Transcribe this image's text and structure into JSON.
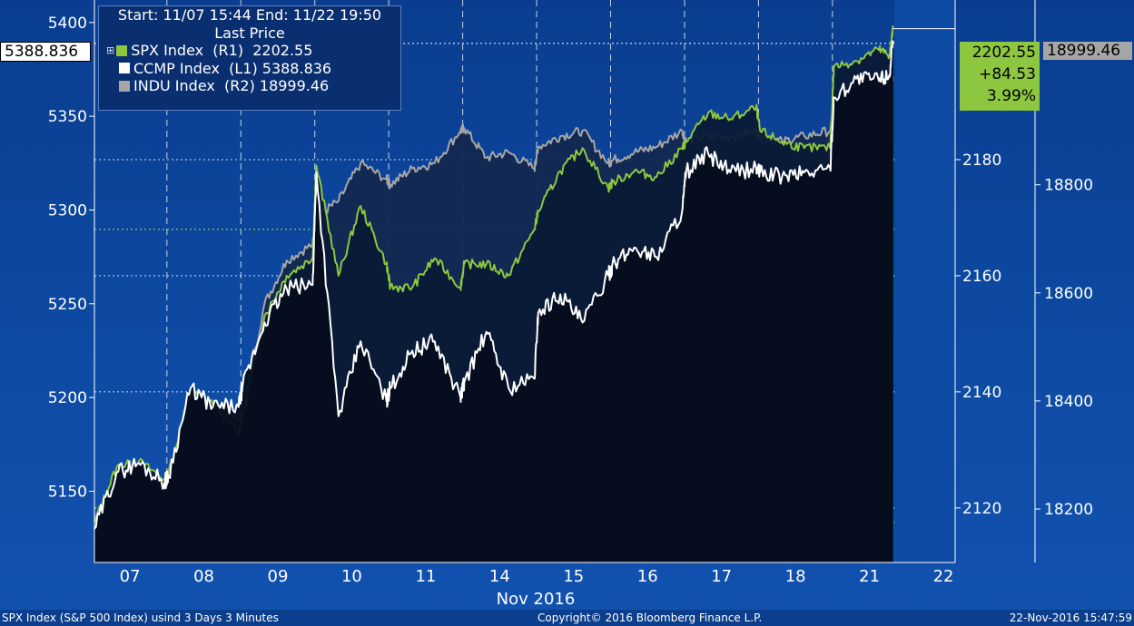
{
  "legend": {
    "range": "Start: 11/07 15:44 End: 11/22 19:50",
    "heading": "Last Price",
    "items": [
      {
        "label": "SPX Index  (R1)  2202.55",
        "color": "#8dc63f"
      },
      {
        "label": "CCMP Index  (L1) 5388.836",
        "color": "#ffffff"
      },
      {
        "label": "INDU Index  (R2) 18999.46",
        "color": "#a6a6a6"
      }
    ]
  },
  "tags": {
    "left_last": "5388.836",
    "spx_last": "2202.55",
    "spx_change": "+84.53",
    "spx_pct": "3.99%",
    "indu_last": "18999.46"
  },
  "footer": {
    "left": "SPX Index (S&P 500 Index) usind 3 Days 3 Minutes",
    "center": "Copyright© 2016 Bloomberg Finance L.P.",
    "right": "22-Nov-2016 15:47:59"
  },
  "colors": {
    "spx": "#8dc63f",
    "ccmp": "#ffffff",
    "indu": "#a6a6a6",
    "plot_fill": "#050d1c"
  },
  "chart_data": {
    "type": "line",
    "xlabel": "Nov 2016",
    "categories": [
      "07",
      "08",
      "09",
      "10",
      "11",
      "14",
      "15",
      "16",
      "17",
      "18",
      "21",
      "22"
    ],
    "left_axis": {
      "series": "CCMP Index",
      "ticks": [
        "5150",
        "5200",
        "5250",
        "5300",
        "5350",
        "5400"
      ],
      "range": [
        5112,
        5412
      ]
    },
    "right1_axis": {
      "series": "SPX Index",
      "ticks": [
        "2120",
        "2140",
        "2160",
        "2180"
      ],
      "range": [
        2110.6,
        2207.5
      ]
    },
    "right2_axis": {
      "series": "INDU Index",
      "ticks": [
        "18200",
        "18400",
        "18600",
        "18800"
      ],
      "range": [
        18101,
        19142
      ]
    },
    "reference_lines": {
      "left": 5388.836,
      "spx": [
        2182,
        2168,
        2162,
        2120,
        2117.5
      ],
      "spx_dotted_color_line": [
        2168,
        2117.5
      ]
    },
    "series": [
      {
        "name": "SPX Index",
        "axis": "R1",
        "x": [
          0.0,
          0.3,
          0.6,
          0.95,
          1.0,
          1.3,
          1.6,
          1.95,
          2.0,
          2.3,
          2.6,
          2.95,
          3.0,
          3.3,
          3.6,
          3.95,
          4.0,
          4.3,
          4.6,
          4.95,
          5.0,
          5.3,
          5.6,
          5.95,
          6.0,
          6.3,
          6.6,
          6.95,
          7.0,
          7.3,
          7.6,
          7.95,
          8.0,
          8.3,
          8.6,
          8.95,
          9.0,
          9.3,
          9.6,
          9.95,
          10.0,
          10.3,
          10.6,
          10.75,
          10.8
        ],
        "values": [
          2117.5,
          2127,
          2128,
          2125,
          2126,
          2140,
          2138,
          2133,
          2135,
          2153,
          2160,
          2163,
          2179,
          2160,
          2172,
          2162,
          2158,
          2158,
          2163,
          2158,
          2162,
          2162,
          2160,
          2168,
          2171,
          2178,
          2182,
          2175,
          2176,
          2178,
          2177,
          2182,
          2183,
          2188,
          2187,
          2189,
          2185,
          2183,
          2182,
          2182,
          2196,
          2197,
          2199,
          2198,
          2202.55
        ]
      },
      {
        "name": "CCMP Index",
        "axis": "L1",
        "x": [
          0.0,
          0.3,
          0.6,
          0.95,
          1.0,
          1.3,
          1.6,
          1.95,
          2.0,
          2.3,
          2.6,
          2.95,
          3.0,
          3.3,
          3.6,
          3.95,
          4.0,
          4.3,
          4.6,
          4.95,
          5.0,
          5.3,
          5.6,
          5.95,
          6.0,
          6.3,
          6.6,
          6.95,
          7.0,
          7.3,
          7.6,
          7.95,
          8.0,
          8.3,
          8.6,
          8.95,
          9.0,
          9.3,
          9.6,
          9.95,
          10.0,
          10.3,
          10.6,
          10.75,
          10.8
        ],
        "values": [
          5130,
          5160,
          5165,
          5155,
          5158,
          5205,
          5195,
          5195,
          5205,
          5240,
          5258,
          5260,
          5320,
          5190,
          5230,
          5198,
          5205,
          5225,
          5230,
          5200,
          5208,
          5235,
          5205,
          5210,
          5245,
          5255,
          5240,
          5265,
          5270,
          5280,
          5275,
          5300,
          5320,
          5330,
          5320,
          5322,
          5320,
          5318,
          5320,
          5322,
          5360,
          5370,
          5370,
          5372,
          5388.836
        ]
      },
      {
        "name": "INDU Index",
        "axis": "R2",
        "x": [
          0.0,
          0.3,
          0.6,
          0.95,
          1.0,
          1.3,
          1.6,
          1.95,
          2.0,
          2.3,
          2.6,
          2.95,
          3.0,
          3.3,
          3.6,
          3.95,
          4.0,
          4.3,
          4.6,
          4.95,
          5.0,
          5.3,
          5.6,
          5.95,
          6.0,
          6.3,
          6.6,
          6.95,
          7.0,
          7.3,
          7.6,
          7.95,
          8.0,
          8.3,
          8.6,
          8.95,
          9.0,
          9.3,
          9.6,
          9.95,
          10.0,
          10.3,
          10.6,
          10.75,
          10.8
        ],
        "values": [
          18140,
          18230,
          18235,
          18200,
          18205,
          18400,
          18380,
          18370,
          18375,
          18580,
          18660,
          18690,
          18740,
          18770,
          18840,
          18810,
          18800,
          18830,
          18840,
          18900,
          18905,
          18850,
          18860,
          18830,
          18870,
          18890,
          18900,
          18840,
          18845,
          18860,
          18870,
          18900,
          18880,
          18890,
          18890,
          18900,
          18890,
          18880,
          18890,
          18900,
          18930,
          18950,
          18960,
          18965,
          18999.46
        ]
      }
    ]
  }
}
